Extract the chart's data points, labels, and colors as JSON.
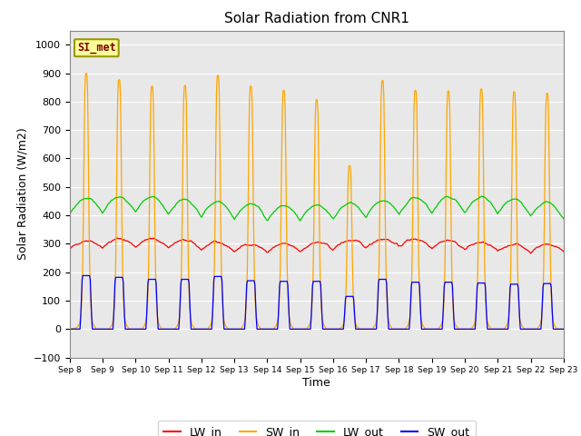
{
  "title": "Solar Radiation from CNR1",
  "xlabel": "Time",
  "ylabel": "Solar Radiation (W/m2)",
  "ylim": [
    -100,
    1050
  ],
  "background_color": "#e8e8e8",
  "figure_color": "#ffffff",
  "grid_color": "#ffffff",
  "colors": {
    "LW_in": "#ff0000",
    "SW_in": "#ffa500",
    "LW_out": "#00cc00",
    "SW_out": "#0000ff"
  },
  "xtick_labels": [
    "Sep 8",
    "Sep 9",
    "Sep 10",
    "Sep 11",
    "Sep 12",
    "Sep 13",
    "Sep 14",
    "Sep 15",
    "Sep 16",
    "Sep 17",
    "Sep 18",
    "Sep 19",
    "Sep 20",
    "Sep 21",
    "Sep 22",
    "Sep 23"
  ],
  "ytick_values": [
    -100,
    0,
    100,
    200,
    300,
    400,
    500,
    600,
    700,
    800,
    900,
    1000
  ],
  "station_label": "SI_met",
  "SW_in_peaks": [
    900,
    878,
    855,
    857,
    893,
    855,
    840,
    808,
    575,
    875,
    840,
    838,
    845,
    835,
    830
  ],
  "SW_out_peaks": [
    188,
    182,
    175,
    175,
    185,
    170,
    168,
    168,
    115,
    175,
    165,
    165,
    162,
    158,
    160
  ],
  "LW_in_base": 280,
  "LW_out_base": 395
}
